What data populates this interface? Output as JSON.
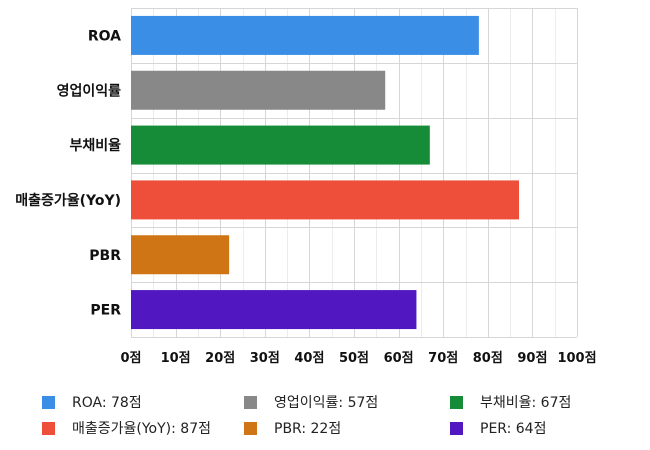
{
  "chart_data": {
    "type": "bar",
    "orientation": "horizontal",
    "categories": [
      "ROA",
      "영업이익률",
      "부채비율",
      "매출증가율(YoY)",
      "PBR",
      "PER"
    ],
    "values": [
      78,
      57,
      67,
      87,
      22,
      64
    ],
    "colors": [
      "#3a8ee6",
      "#888888",
      "#178c38",
      "#ee4f3a",
      "#cf7516",
      "#5118c2"
    ],
    "unit": "점",
    "xlim": [
      0,
      100
    ],
    "xticks": [
      0,
      10,
      20,
      30,
      40,
      50,
      60,
      70,
      80,
      90,
      100
    ],
    "grid": true,
    "legend_position": "bottom",
    "legend": [
      "ROA: 78점",
      "영업이익률: 57점",
      "부채비율: 67점",
      "매출증가율(YoY): 87점",
      "PBR: 22점",
      "PER: 64점"
    ]
  }
}
